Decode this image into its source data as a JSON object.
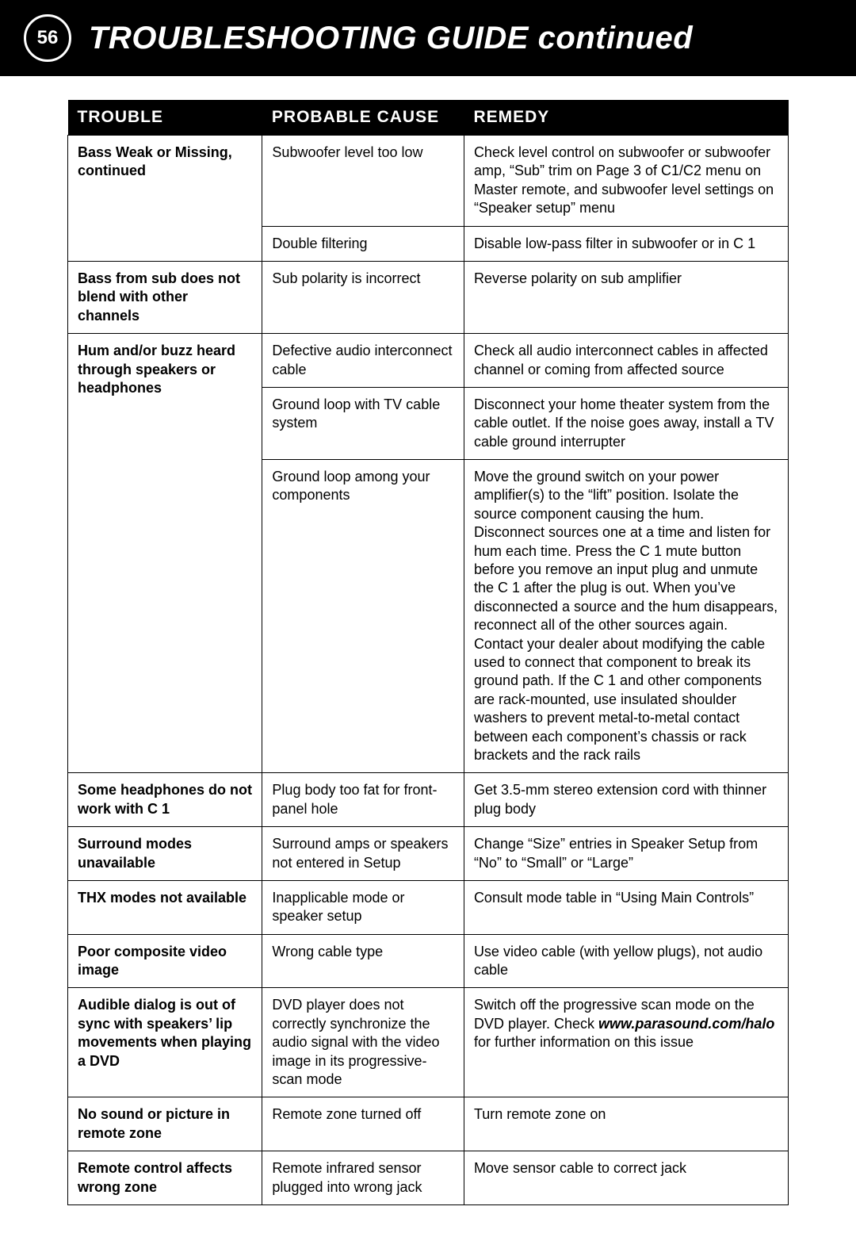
{
  "header": {
    "page_number": "56",
    "title": "TROUBLESHOOTING GUIDE continued"
  },
  "table": {
    "type": "table",
    "background_color": "#ffffff",
    "header_bg": "#000000",
    "header_fg": "#ffffff",
    "border_color": "#000000",
    "header_fontsize": 21,
    "body_fontsize": 18,
    "columns": [
      {
        "key": "trouble",
        "label": "TROUBLE",
        "width_pct": 27,
        "bold": true
      },
      {
        "key": "cause",
        "label": "PROBABLE CAUSE",
        "width_pct": 28,
        "bold": false
      },
      {
        "key": "remedy",
        "label": "REMEDY",
        "width_pct": 45,
        "bold": false
      }
    ],
    "groups": [
      {
        "trouble": "Bass Weak or Missing, continued",
        "rows": [
          {
            "cause": "Subwoofer level too low",
            "remedy": "Check level control on subwoofer or subwoofer amp, “Sub” trim on Page 3 of C1/C2 menu on Master remote, and subwoofer level settings on “Speaker setup” menu"
          },
          {
            "cause": "Double filtering",
            "remedy": "Disable low-pass filter in subwoofer or in C 1"
          }
        ]
      },
      {
        "trouble": "Bass from sub does not blend with other channels",
        "rows": [
          {
            "cause": "Sub polarity is incorrect",
            "remedy": "Reverse polarity on sub amplifier"
          }
        ]
      },
      {
        "trouble": "Hum and/or buzz heard through speakers or headphones",
        "rows": [
          {
            "cause": "Defective audio interconnect cable",
            "remedy": "Check all audio interconnect cables in affected channel or coming from affected source"
          },
          {
            "cause": "Ground loop with TV cable system",
            "remedy": "Disconnect your home theater system from the cable outlet. If the noise goes away, install a TV cable ground interrupter"
          },
          {
            "cause": "Ground loop among your components",
            "remedy": "Move the ground switch on your power amplifier(s) to the “lift” position. Isolate the source component causing the hum. Disconnect sources one at a time and listen for hum each time. Press the C 1 mute button before you remove an input plug and unmute the C 1 after the plug is out. When you’ve disconnected a source and the hum disappears, reconnect all of the other sources again. Contact your dealer about modifying the cable used to connect that component to break its ground path. If the C 1 and other components are rack-mounted, use insulated shoulder washers to prevent metal-to-metal contact between each component’s chassis or rack brackets and the rack rails"
          }
        ]
      },
      {
        "trouble": "Some headphones do not work with C 1",
        "rows": [
          {
            "cause": "Plug body too fat for front-panel hole",
            "remedy": "Get 3.5-mm stereo extension cord with thinner plug body"
          }
        ]
      },
      {
        "trouble": "Surround modes unavailable",
        "rows": [
          {
            "cause": "Surround amps or speakers not entered in Setup",
            "remedy": "Change “Size” entries in Speaker Setup from “No” to “Small” or “Large”"
          }
        ]
      },
      {
        "trouble": "THX modes not available",
        "rows": [
          {
            "cause": "Inapplicable mode or speaker setup",
            "remedy": "Consult mode table in “Using Main Controls”"
          }
        ]
      },
      {
        "trouble": "Poor composite video image",
        "rows": [
          {
            "cause": "Wrong cable type",
            "remedy": "Use video cable (with yellow plugs), not audio cable"
          }
        ]
      },
      {
        "trouble": "Audible dialog is out of sync with speakers’ lip movements when playing a DVD",
        "rows": [
          {
            "cause": "DVD player does not correctly synchronize the audio signal with the video image in its progressive-scan mode",
            "remedy_parts": [
              {
                "text": "Switch off the progressive scan mode on the DVD player. Check ",
                "style": "normal"
              },
              {
                "text": "www.parasound.com/halo",
                "style": "url"
              },
              {
                "text": " for further information on this issue",
                "style": "normal"
              }
            ]
          }
        ]
      },
      {
        "trouble": "No sound or picture in remote zone",
        "rows": [
          {
            "cause": "Remote zone turned off",
            "remedy": "Turn remote zone on"
          }
        ]
      },
      {
        "trouble": "Remote control affects wrong zone",
        "rows": [
          {
            "cause": "Remote infrared sensor plugged into wrong jack",
            "remedy": "Move sensor cable to correct jack"
          }
        ]
      }
    ]
  }
}
